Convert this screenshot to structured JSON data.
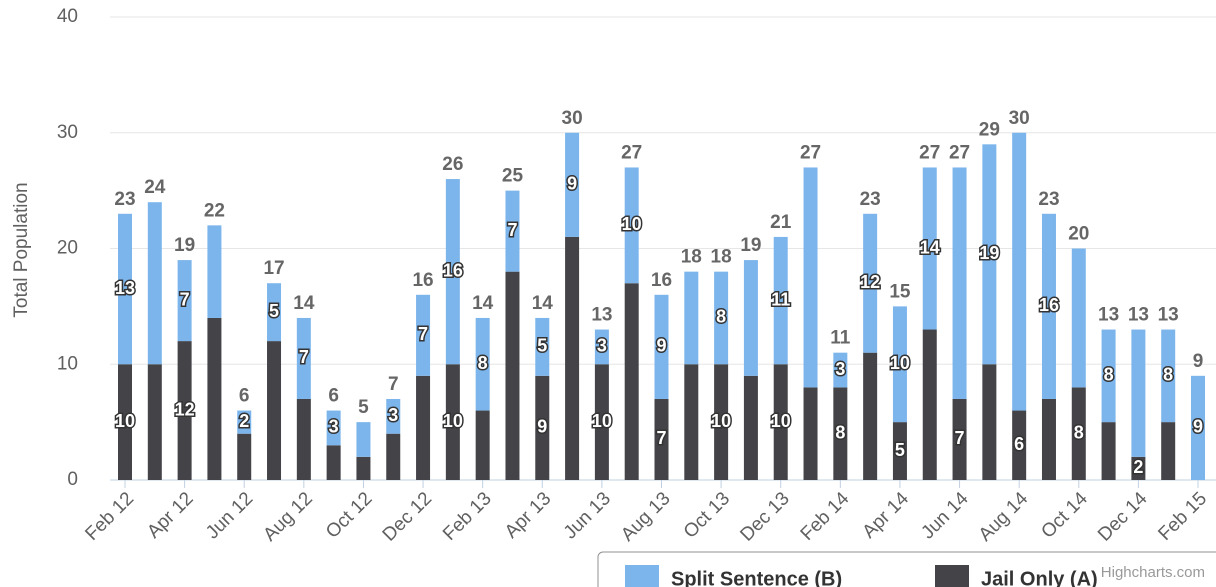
{
  "chart_data": {
    "type": "stacked_bar",
    "y_axis_label": "Total Population",
    "categories": [
      "Feb 12",
      null,
      "Apr 12",
      null,
      "Jun 12",
      null,
      "Aug 12",
      null,
      "Oct 12",
      null,
      "Dec 12",
      null,
      "Feb 13",
      null,
      "Apr 13",
      null,
      "Jun 13",
      null,
      "Aug 13",
      null,
      "Oct 13",
      null,
      "Dec 13",
      null,
      "Feb 14",
      null,
      "Apr 14",
      null,
      "Jun 14",
      null,
      "Aug 14",
      null,
      "Oct 14",
      null,
      "Dec 14",
      null,
      "Feb 15"
    ],
    "series": [
      {
        "name": "Jail Only (A)",
        "color": "#434348",
        "values": [
          10,
          10,
          12,
          14,
          4,
          12,
          7,
          3,
          2,
          4,
          9,
          10,
          6,
          18,
          9,
          21,
          10,
          17,
          7,
          10,
          10,
          9,
          10,
          8,
          8,
          11,
          5,
          13,
          7,
          10,
          6,
          7,
          8,
          5,
          2,
          5,
          0
        ],
        "value_labels": [
          "10",
          null,
          "12",
          null,
          null,
          null,
          null,
          null,
          null,
          null,
          null,
          "10",
          null,
          null,
          "9",
          null,
          "10",
          null,
          "7",
          null,
          "10",
          null,
          "10",
          null,
          "8",
          null,
          "5",
          null,
          "7",
          null,
          "6",
          null,
          "8",
          null,
          "2",
          null,
          null
        ]
      },
      {
        "name": "Split Sentence (B)",
        "color": "#7cb5ec",
        "values": [
          13,
          14,
          7,
          8,
          2,
          5,
          7,
          3,
          3,
          3,
          7,
          16,
          8,
          7,
          5,
          9,
          3,
          10,
          9,
          8,
          8,
          10,
          11,
          19,
          3,
          12,
          10,
          14,
          20,
          19,
          24,
          16,
          12,
          8,
          11,
          8,
          9
        ],
        "value_labels": [
          "13",
          null,
          "7",
          null,
          "2",
          "5",
          "7",
          "3",
          null,
          "3",
          "7",
          "16",
          "8",
          "7",
          "5",
          "9",
          "3",
          "10",
          "9",
          null,
          "8",
          null,
          "11",
          null,
          "3",
          "12",
          "10",
          "14",
          null,
          "19",
          null,
          "16",
          null,
          "8",
          null,
          "8",
          "9"
        ]
      }
    ],
    "totals": [
      23,
      24,
      19,
      22,
      6,
      17,
      14,
      6,
      5,
      7,
      16,
      26,
      14,
      25,
      14,
      30,
      13,
      27,
      16,
      18,
      18,
      19,
      21,
      27,
      11,
      23,
      15,
      27,
      27,
      29,
      30,
      23,
      20,
      13,
      13,
      13,
      9
    ],
    "legend_order": [
      1,
      0
    ],
    "credits": "Highcharts.com",
    "ylim": [
      0,
      40
    ],
    "yticks": [
      0,
      10,
      20,
      30,
      40
    ],
    "grid": true
  }
}
